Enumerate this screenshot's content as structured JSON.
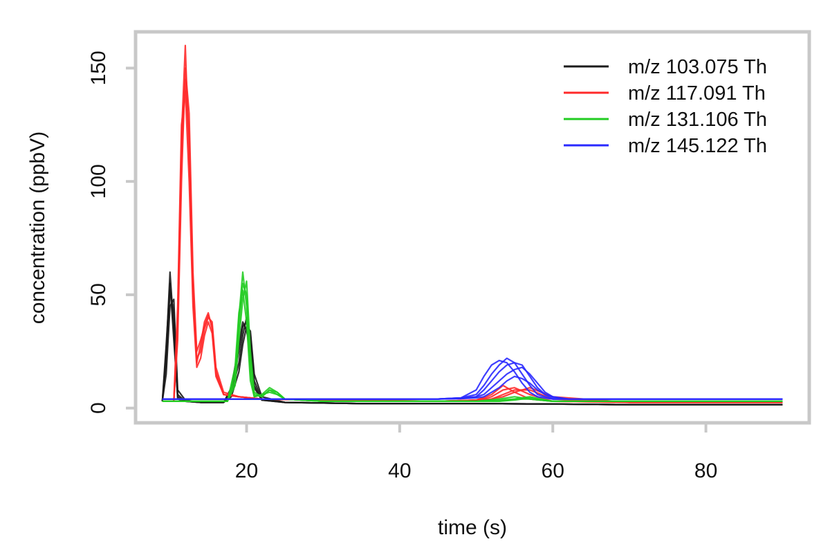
{
  "chart_data": {
    "type": "line",
    "title": "",
    "xlabel": "time (s)",
    "ylabel": "concentration (ppbV)",
    "xlim": [
      5.5,
      93.5
    ],
    "ylim": [
      -6.5,
      166
    ],
    "xticks": [
      20,
      40,
      60,
      80
    ],
    "yticks": [
      0,
      50,
      100,
      150
    ],
    "legend_position": "top-right",
    "series": [
      {
        "name": "m/z 103.075 Th",
        "color": "#1a1a1a",
        "traces": [
          {
            "x": [
              9,
              9.5,
              10,
              10.5,
              11,
              12,
              14,
              17,
              18,
              19,
              19.5,
              20,
              20.5,
              21,
              22,
              25,
              35,
              50,
              60,
              70,
              80,
              90
            ],
            "y": [
              3,
              25,
              60,
              35,
              4,
              3,
              2.5,
              2.5,
              8,
              25,
              36,
              38,
              28,
              10,
              3.5,
              2.5,
              2,
              2,
              1.8,
              1.5,
              1.5,
              1.5
            ]
          },
          {
            "x": [
              9,
              9.5,
              10,
              10.5,
              11,
              12,
              14,
              17,
              18,
              19,
              19.5,
              20,
              20.5,
              21,
              22,
              25,
              35,
              50,
              60,
              70,
              80,
              90
            ],
            "y": [
              3,
              20,
              52,
              42,
              6,
              3,
              2.5,
              2.5,
              6,
              20,
              32,
              40,
              32,
              12,
              4,
              2.5,
              2,
              2,
              1.8,
              1.5,
              1.5,
              1.5
            ]
          },
          {
            "x": [
              9,
              9.5,
              10,
              10.5,
              11,
              12,
              14,
              17,
              18,
              19,
              19.5,
              20,
              20.5,
              21,
              22,
              25,
              35,
              50,
              60,
              70,
              80,
              90
            ],
            "y": [
              3,
              15,
              45,
              48,
              8,
              3.5,
              2.5,
              2.5,
              5,
              16,
              28,
              36,
              34,
              15,
              5,
              2.5,
              2,
              2,
              1.8,
              1.5,
              1.5,
              1.5
            ]
          },
          {
            "x": [
              9,
              9.5,
              10,
              10.5,
              11,
              12,
              14,
              17,
              18,
              19,
              19.5,
              20,
              20.5,
              21,
              22,
              25,
              35,
              50,
              60,
              70,
              80,
              90
            ],
            "y": [
              3,
              28,
              55,
              30,
              5,
              3,
              2.5,
              2.5,
              9,
              28,
              38,
              34,
              25,
              9,
              3.5,
              2.5,
              2,
              2,
              1.8,
              1.5,
              1.5,
              1.5
            ]
          }
        ]
      },
      {
        "name": "m/z 117.091 Th",
        "color": "#ff2a2a",
        "traces": [
          {
            "x": [
              9,
              10.5,
              11,
              11.5,
              12,
              12.5,
              13,
              13.5,
              14,
              14.5,
              15,
              15.5,
              16,
              17,
              19,
              22,
              30,
              45,
              50,
              52,
              53.5,
              55,
              57,
              60,
              70,
              80,
              90
            ],
            "y": [
              3,
              3,
              40,
              120,
              160,
              110,
              50,
              20,
              28,
              38,
              42,
              35,
              15,
              6,
              5,
              4,
              3.5,
              3,
              3.5,
              6,
              10,
              7,
              4,
              3,
              2.5,
              2.5,
              2.5
            ]
          },
          {
            "x": [
              9,
              10.5,
              11,
              11.5,
              12,
              12.5,
              13,
              13.5,
              14,
              14.5,
              15,
              15.5,
              16,
              17,
              19,
              22,
              30,
              45,
              50,
              52,
              53.5,
              55,
              57,
              60,
              70,
              80,
              90
            ],
            "y": [
              3,
              3,
              35,
              110,
              145,
              120,
              55,
              22,
              25,
              35,
              40,
              38,
              18,
              7,
              5,
              4,
              3.5,
              3,
              3.5,
              5,
              8,
              9,
              6,
              3,
              2.5,
              2.5,
              2.5
            ]
          },
          {
            "x": [
              9,
              10.5,
              11,
              11.5,
              12,
              12.5,
              13,
              13.5,
              14,
              14.5,
              15,
              15.5,
              16,
              17,
              19,
              22,
              30,
              45,
              50,
              52,
              53.5,
              55,
              57,
              60,
              70,
              80,
              90
            ],
            "y": [
              3,
              3,
              45,
              125,
              140,
              100,
              45,
              18,
              22,
              32,
              38,
              33,
              14,
              6,
              5,
              4,
              3.5,
              3,
              3.5,
              4,
              6,
              8,
              8,
              4,
              2.5,
              2.5,
              2.5
            ]
          },
          {
            "x": [
              9,
              10.5,
              11,
              11.5,
              12,
              12.5,
              13,
              13.5,
              14,
              14.5,
              15,
              15.5,
              16,
              17,
              19,
              22,
              30,
              45,
              50,
              52,
              53.5,
              55,
              57,
              60,
              70,
              80,
              90
            ],
            "y": [
              3,
              3,
              30,
              100,
              150,
              130,
              60,
              25,
              30,
              36,
              41,
              36,
              16,
              6,
              5,
              4,
              3.5,
              3,
              3.5,
              4,
              5,
              7,
              9,
              5,
              2.5,
              2.5,
              2.5
            ]
          }
        ]
      },
      {
        "name": "m/z 131.106 Th",
        "color": "#22cc22",
        "traces": [
          {
            "x": [
              9,
              15,
              17.5,
              18.5,
              19,
              19.5,
              20,
              20.5,
              21,
              22,
              23,
              24,
              25,
              30,
              45,
              50,
              53,
              55,
              57,
              60,
              70,
              80,
              90
            ],
            "y": [
              3,
              3,
              3,
              15,
              40,
              60,
              45,
              15,
              5,
              6,
              9,
              7,
              4,
              3,
              3,
              3,
              4,
              5,
              4,
              3,
              3,
              3,
              3
            ]
          },
          {
            "x": [
              9,
              15,
              17.5,
              18.5,
              19,
              19.5,
              20,
              20.5,
              21,
              22,
              23,
              24,
              25,
              30,
              45,
              50,
              53,
              55,
              57,
              60,
              70,
              80,
              90
            ],
            "y": [
              3,
              3,
              3,
              12,
              35,
              55,
              50,
              20,
              6,
              5,
              8,
              7,
              4,
              3,
              3,
              3,
              3.5,
              4,
              5,
              3,
              3,
              3,
              3
            ]
          },
          {
            "x": [
              9,
              15,
              17.5,
              18.5,
              19,
              19.5,
              20,
              20.5,
              21,
              22,
              23,
              24,
              25,
              30,
              45,
              50,
              53,
              55,
              57,
              60,
              70,
              80,
              90
            ],
            "y": [
              3,
              3,
              3,
              18,
              42,
              52,
              38,
              12,
              5,
              6,
              7,
              6,
              4,
              3,
              3,
              3,
              3,
              4,
              4,
              3,
              3,
              3,
              3
            ]
          },
          {
            "x": [
              9,
              15,
              17.5,
              18.5,
              19,
              19.5,
              20,
              20.5,
              21,
              22,
              23,
              24,
              25,
              30,
              45,
              50,
              53,
              55,
              57,
              60,
              70,
              80,
              90
            ],
            "y": [
              3,
              3,
              3,
              10,
              30,
              48,
              56,
              25,
              7,
              5,
              8,
              6,
              4,
              3,
              3,
              3,
              3,
              3.5,
              4.5,
              3,
              3,
              3,
              3
            ]
          }
        ]
      },
      {
        "name": "m/z 145.122 Th",
        "color": "#2a2aff",
        "traces": [
          {
            "x": [
              9,
              20,
              30,
              45,
              48,
              50,
              51,
              52,
              53,
              54,
              55,
              56,
              57,
              58,
              59,
              60,
              62,
              70,
              80,
              90
            ],
            "y": [
              4,
              4,
              4,
              4,
              4.5,
              8,
              14,
              19,
              21,
              20,
              16,
              11,
              7,
              5,
              4.5,
              4,
              4,
              4,
              4,
              4
            ]
          },
          {
            "x": [
              9,
              20,
              30,
              45,
              48,
              50,
              51,
              52,
              53,
              54,
              55,
              56,
              57,
              58,
              59,
              60,
              62,
              70,
              80,
              90
            ],
            "y": [
              4,
              4,
              4,
              4,
              4.5,
              6,
              10,
              15,
              19,
              22,
              20,
              15,
              10,
              6,
              5,
              4,
              4,
              4,
              4,
              4
            ]
          },
          {
            "x": [
              9,
              20,
              30,
              45,
              48,
              50,
              51,
              52,
              53,
              54,
              55,
              56,
              57,
              58,
              59,
              60,
              62,
              70,
              80,
              90
            ],
            "y": [
              4,
              4,
              4,
              4,
              4.5,
              5,
              8,
              12,
              16,
              19,
              20,
              19,
              14,
              9,
              6,
              4.5,
              4,
              4,
              4,
              4
            ]
          },
          {
            "x": [
              9,
              20,
              30,
              45,
              48,
              50,
              51,
              52,
              53,
              54,
              55,
              56,
              57,
              58,
              59,
              60,
              62,
              70,
              80,
              90
            ],
            "y": [
              4,
              4,
              4,
              4,
              4.2,
              5,
              6,
              9,
              12,
              15,
              17,
              18,
              15,
              11,
              7,
              5,
              4,
              4,
              4,
              4
            ]
          },
          {
            "x": [
              9,
              20,
              30,
              45,
              48,
              50,
              51,
              52,
              53,
              54,
              55,
              56,
              57,
              58,
              59,
              60,
              62,
              70,
              80,
              90
            ],
            "y": [
              4,
              4,
              4,
              4,
              4.2,
              4.5,
              5,
              7,
              9,
              12,
              14,
              13,
              11,
              8,
              6,
              5,
              4,
              4,
              4,
              4
            ]
          }
        ]
      }
    ]
  }
}
